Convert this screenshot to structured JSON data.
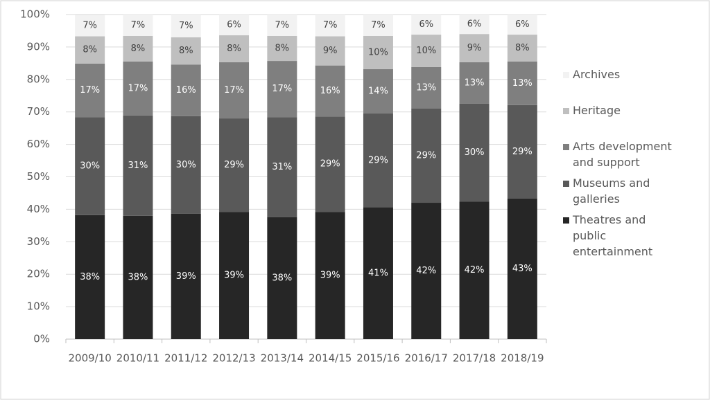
{
  "chart_data": {
    "type": "stacked-bar",
    "categories": [
      "2009/10",
      "2010/11",
      "2011/12",
      "2012/13",
      "2013/14",
      "2014/15",
      "2015/16",
      "2016/17",
      "2017/18",
      "2018/19"
    ],
    "series": [
      {
        "name": "Theatres and public entertainment",
        "color": "#262626",
        "label_color": "#ffffff",
        "values": [
          38.2,
          38.0,
          38.6,
          39.2,
          37.6,
          39.2,
          40.6,
          42.0,
          42.4,
          43.3
        ],
        "value_labels": [
          "38%",
          "38%",
          "39%",
          "39%",
          "38%",
          "39%",
          "41%",
          "42%",
          "42%",
          "43%"
        ]
      },
      {
        "name": "Museums and galleries",
        "color": "#595959",
        "label_color": "#ffffff",
        "values": [
          30.2,
          30.9,
          30.1,
          28.8,
          30.8,
          29.4,
          28.9,
          29.0,
          30.1,
          28.8
        ],
        "value_labels": [
          "30%",
          "31%",
          "30%",
          "29%",
          "31%",
          "29%",
          "29%",
          "29%",
          "30%",
          "29%"
        ]
      },
      {
        "name": "Arts development and support",
        "color": "#7f7f7f",
        "label_color": "#ffffff",
        "values": [
          16.5,
          16.6,
          15.9,
          17.3,
          17.3,
          15.7,
          13.7,
          12.8,
          12.8,
          13.4
        ],
        "value_labels": [
          "17%",
          "17%",
          "16%",
          "17%",
          "17%",
          "16%",
          "14%",
          "13%",
          "13%",
          "13%"
        ]
      },
      {
        "name": "Heritage",
        "color": "#bfbfbf",
        "label_color": "#404040",
        "values": [
          8.4,
          7.9,
          8.4,
          8.3,
          7.7,
          9.0,
          10.2,
          10.0,
          8.7,
          8.3
        ],
        "value_labels": [
          "8%",
          "8%",
          "8%",
          "8%",
          "8%",
          "9%",
          "10%",
          "10%",
          "9%",
          "8%"
        ]
      },
      {
        "name": "Archives",
        "color": "#f2f2f2",
        "label_color": "#404040",
        "values": [
          6.6,
          6.6,
          7.0,
          6.4,
          6.6,
          6.7,
          6.6,
          6.2,
          6.0,
          6.2
        ],
        "value_labels": [
          "7%",
          "7%",
          "7%",
          "6%",
          "7%",
          "7%",
          "7%",
          "6%",
          "6%",
          "6%"
        ]
      }
    ],
    "ylim": [
      0,
      100
    ],
    "yticks": [
      {
        "value": 0,
        "label": "0%"
      },
      {
        "value": 10,
        "label": "10%"
      },
      {
        "value": 20,
        "label": "20%"
      },
      {
        "value": 30,
        "label": "30%"
      },
      {
        "value": 40,
        "label": "40%"
      },
      {
        "value": 50,
        "label": "50%"
      },
      {
        "value": 60,
        "label": "60%"
      },
      {
        "value": 70,
        "label": "70%"
      },
      {
        "value": 80,
        "label": "80%"
      },
      {
        "value": 90,
        "label": "90%"
      },
      {
        "value": 100,
        "label": "100%"
      }
    ],
    "grid": true,
    "legend": "right"
  }
}
